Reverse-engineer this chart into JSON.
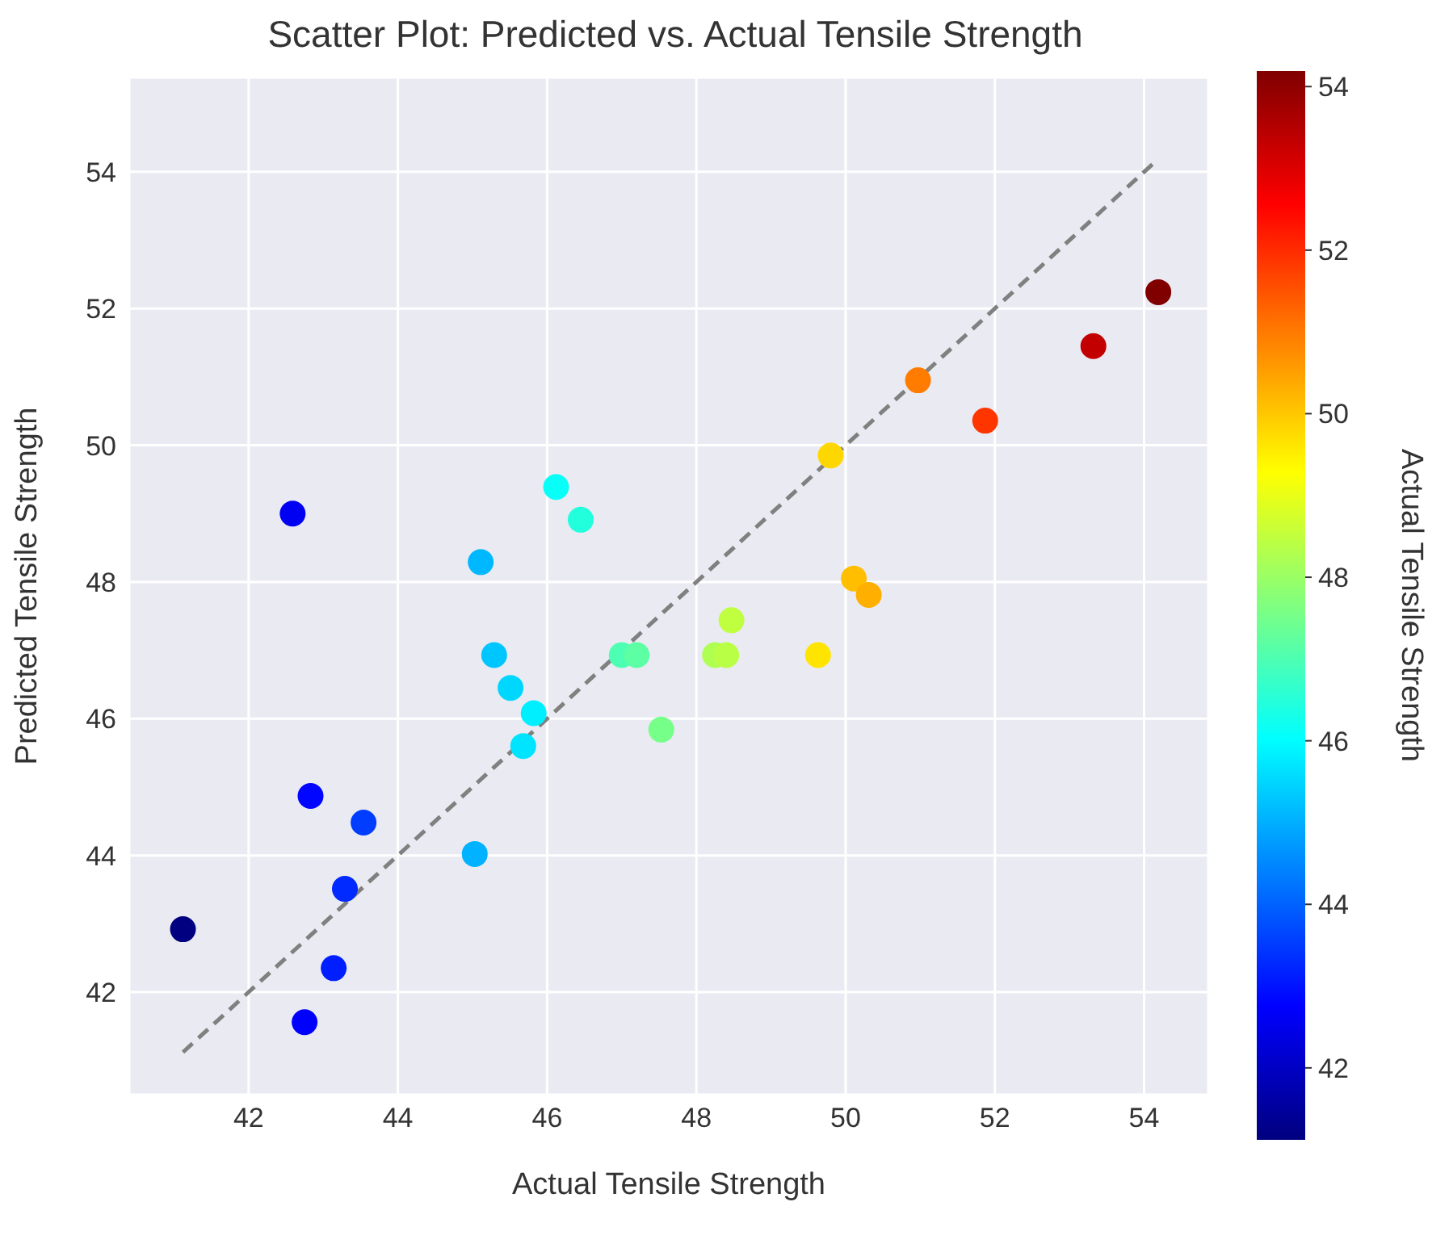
{
  "chart_data": {
    "type": "scatter",
    "title": "Scatter Plot: Predicted vs. Actual Tensile Strength",
    "xlabel": "Actual Tensile Strength",
    "ylabel": "Predicted Tensile Strength",
    "clabel": "Actual Tensile Strength",
    "xlim": [
      40.4,
      54.86
    ],
    "ylim": [
      40.5,
      55.38
    ],
    "xticks": [
      42,
      44,
      46,
      48,
      50,
      52,
      54
    ],
    "yticks": [
      42,
      44,
      46,
      48,
      50,
      52,
      54
    ],
    "clim": [
      41.12,
      54.19
    ],
    "cticks": [
      42,
      44,
      46,
      48,
      50,
      52,
      54
    ],
    "grid": true,
    "marker": "circle",
    "series": [
      {
        "type": "scatter",
        "x": [
          41.12,
          42.59,
          42.75,
          42.83,
          43.14,
          43.29,
          43.54,
          45.03,
          45.11,
          45.29,
          45.51,
          45.68,
          45.82,
          46.12,
          46.45,
          47.0,
          47.2,
          47.53,
          48.25,
          48.4,
          48.47,
          49.63,
          49.8,
          50.11,
          50.31,
          50.97,
          51.87,
          53.32,
          54.19
        ],
        "values": [
          42.92,
          49.0,
          41.56,
          44.87,
          42.35,
          43.51,
          44.48,
          44.02,
          48.29,
          46.93,
          46.45,
          45.6,
          46.08,
          49.39,
          48.91,
          46.93,
          46.93,
          45.84,
          46.93,
          46.93,
          47.44,
          46.93,
          49.85,
          48.05,
          47.81,
          50.95,
          50.36,
          51.45,
          52.24
        ],
        "colors": [
          "#000080",
          "#0000f2",
          "#0000ff",
          "#0006ff",
          "#001eff",
          "#002aff",
          "#003dff",
          "#00b2ff",
          "#00b8ff",
          "#00c6ff",
          "#00d7ff",
          "#00e4ff",
          "#00efff",
          "#08fff7",
          "#21ffdd",
          "#4cffb2",
          "#5cffa3",
          "#76ff89",
          "#aeff51",
          "#b9ff45",
          "#bfff40",
          "#ffe400",
          "#ffd700",
          "#ffbf00",
          "#ffaf00",
          "#ff7c00",
          "#ff3500",
          "#c30000",
          "#800000"
        ]
      },
      {
        "type": "line",
        "color": "#808080",
        "line_style": "dashed",
        "marker": "none",
        "x": [
          41.12,
          54.19
        ],
        "values": [
          41.12,
          54.19
        ]
      }
    ]
  }
}
